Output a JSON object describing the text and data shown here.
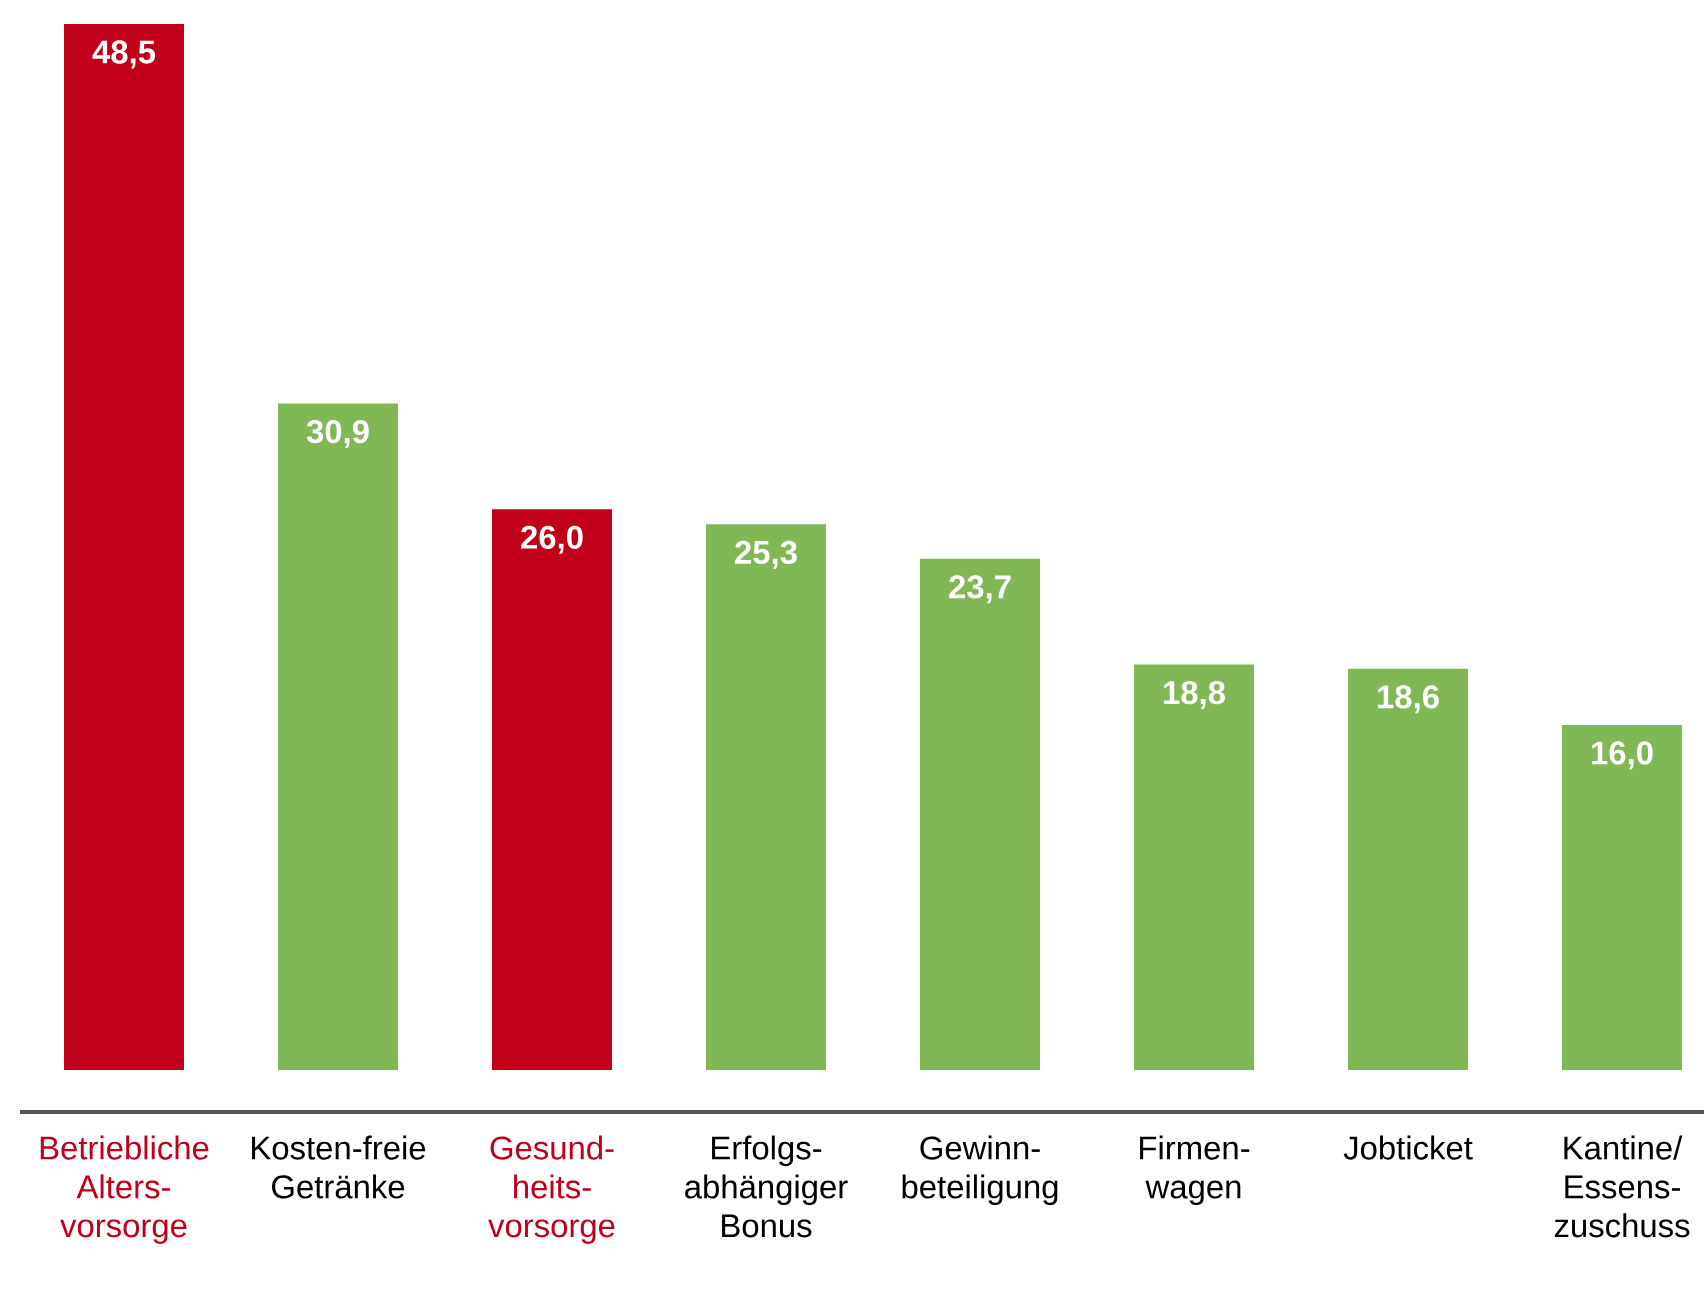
{
  "chart_data": {
    "type": "bar",
    "categories": [
      "Betriebliche Alters-vorsorge",
      "Kosten-freie Getränke",
      "Gesund-heits-vorsorge",
      "Erfolgs-abhängiger Bonus",
      "Gewinn-beteiligung",
      "Firmen-wagen",
      "Jobticket",
      "Kantine/ Essens-zuschuss"
    ],
    "values": [
      48.5,
      30.9,
      26.0,
      25.3,
      23.7,
      18.8,
      18.6,
      16.0
    ],
    "colors": [
      "#c0001a",
      "#7fb855",
      "#c0001a",
      "#7fb855",
      "#7fb855",
      "#7fb855",
      "#7fb855",
      "#7fb855"
    ],
    "value_labels": [
      "48,5",
      "30,9",
      "26,0",
      "25,3",
      "23,7",
      "18,8",
      "18,6",
      "16,0"
    ]
  }
}
